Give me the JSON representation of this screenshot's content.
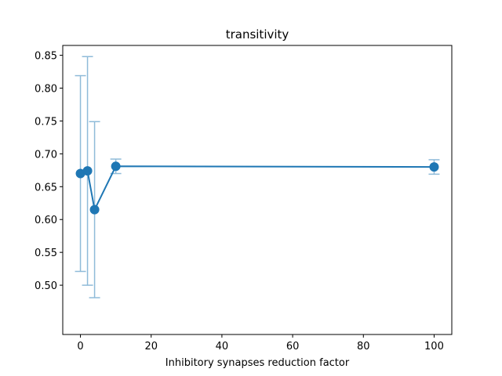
{
  "chart_data": {
    "type": "line",
    "title": "transitivity",
    "xlabel": "Inhibitory synapses reduction factor",
    "ylabel": "",
    "xlim": [
      -5,
      105
    ],
    "ylim": [
      0.425,
      0.865
    ],
    "xticks": [
      0,
      20,
      40,
      60,
      80,
      100
    ],
    "yticks": [
      0.5,
      0.55,
      0.6,
      0.65,
      0.7,
      0.75,
      0.8,
      0.85
    ],
    "grid": false,
    "series": [
      {
        "color": "#1f77b4",
        "error_color": "#8fbbd9",
        "points": [
          {
            "x": 0,
            "y": 0.67,
            "ymin": 0.521,
            "ymax": 0.819
          },
          {
            "x": 2,
            "y": 0.674,
            "ymin": 0.5,
            "ymax": 0.848
          },
          {
            "x": 4,
            "y": 0.615,
            "ymin": 0.481,
            "ymax": 0.749
          },
          {
            "x": 10,
            "y": 0.681,
            "ymin": 0.67,
            "ymax": 0.692
          },
          {
            "x": 100,
            "y": 0.68,
            "ymin": 0.669,
            "ymax": 0.691
          }
        ]
      }
    ]
  }
}
